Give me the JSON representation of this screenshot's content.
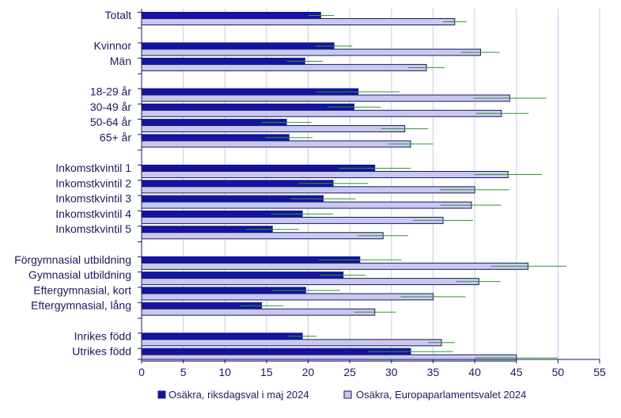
{
  "chart_data": {
    "type": "bar",
    "orientation": "horizontal",
    "categories": [
      "Totalt",
      "Kvinnor",
      "Män",
      "18-29 år",
      "30-49 år",
      "50-64 år",
      "65+ år",
      "Inkomstkvintil 1",
      "Inkomstkvintil 2",
      "Inkomstkvintil 3",
      "Inkomstkvintil 4",
      "Inkomstkvintil 5",
      "Förgymnasial utbildning",
      "Gymnasial utbildning",
      "Eftergymnasial, kort",
      "Eftergymnasial, lång",
      "Inrikes född",
      "Utrikes född"
    ],
    "group_breaks_after": [
      0,
      2,
      6,
      11,
      15
    ],
    "series": [
      {
        "name": "Osäkra, riksdagsval i maj 2024",
        "color": "#1414a0",
        "values": [
          21.5,
          23.1,
          19.6,
          26.0,
          25.5,
          17.4,
          17.7,
          28.0,
          23.0,
          21.8,
          19.3,
          15.7,
          26.2,
          24.2,
          19.7,
          14.4,
          19.3,
          32.3
        ],
        "ci_low": [
          20.0,
          20.9,
          17.4,
          21.0,
          22.3,
          14.4,
          14.9,
          23.7,
          18.8,
          17.9,
          15.6,
          12.5,
          21.2,
          21.5,
          15.6,
          11.9,
          17.6,
          27.2
        ],
        "ci_high": [
          23.1,
          25.3,
          21.8,
          31.0,
          28.7,
          20.4,
          20.5,
          32.3,
          27.2,
          25.7,
          23.0,
          18.9,
          31.2,
          26.9,
          23.8,
          17.0,
          21.0,
          37.4
        ]
      },
      {
        "name": "Osäkra, Europaparlamentsvalet 2024",
        "color": "#c8c8f0",
        "values": [
          37.6,
          40.7,
          34.2,
          44.2,
          43.2,
          31.6,
          32.3,
          44.0,
          40.0,
          39.6,
          36.2,
          29.0,
          46.4,
          40.5,
          35.0,
          28.0,
          36.0,
          45.0
        ],
        "ci_low": [
          36.2,
          38.4,
          32.0,
          39.8,
          40.1,
          28.8,
          29.6,
          39.9,
          35.8,
          35.9,
          32.6,
          26.0,
          41.9,
          37.8,
          31.1,
          25.5,
          34.4,
          40.0
        ],
        "ci_high": [
          39.0,
          43.0,
          36.4,
          48.6,
          46.5,
          34.4,
          35.0,
          48.1,
          44.1,
          43.2,
          39.8,
          32.0,
          51.0,
          43.1,
          38.9,
          30.5,
          37.6,
          50.0
        ]
      }
    ],
    "ci_color": "#2a9a2a",
    "xlim": [
      0,
      55
    ],
    "xticks": [
      0,
      5,
      10,
      15,
      20,
      25,
      30,
      35,
      40,
      45,
      50,
      55
    ],
    "grid": "vertical",
    "grid_color": "#c9c9ee",
    "axis_color": "#1a1a5e",
    "legend": "bottom"
  }
}
